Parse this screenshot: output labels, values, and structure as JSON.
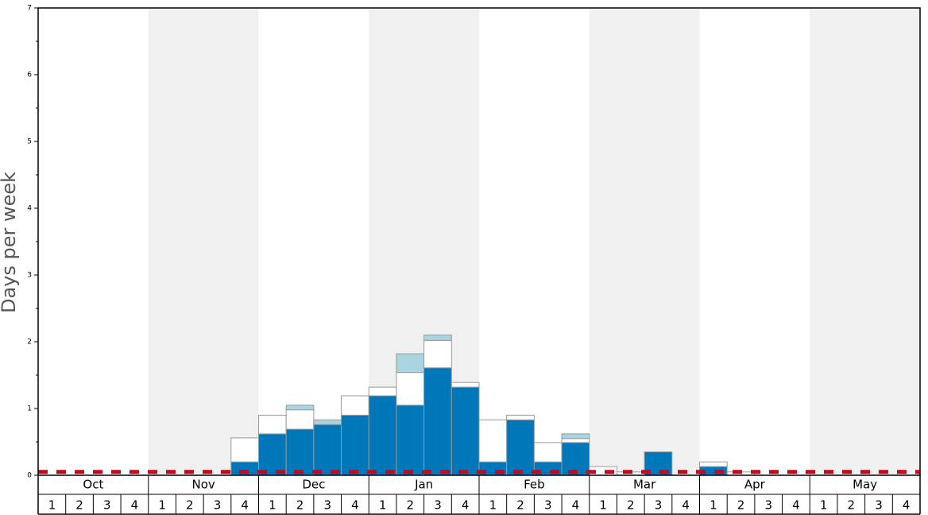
{
  "chart_data": {
    "type": "bar",
    "stacked": true,
    "y_label": "Days per week",
    "groups": [
      "Oct",
      "Nov",
      "Dec",
      "Jan",
      "Feb",
      "Mar",
      "Apr",
      "May"
    ],
    "categories": [
      "1",
      "2",
      "3",
      "4",
      "1",
      "2",
      "3",
      "4",
      "1",
      "2",
      "3",
      "4",
      "1",
      "2",
      "3",
      "4",
      "1",
      "2",
      "3",
      "4",
      "1",
      "2",
      "3",
      "4",
      "1",
      "2",
      "3",
      "4",
      "1",
      "2",
      "3",
      "4"
    ],
    "series": [
      {
        "color": "#0077b8",
        "values": [
          0,
          0,
          0,
          0,
          0,
          0,
          0,
          0.2,
          0.62,
          0.69,
          0.76,
          0.9,
          1.19,
          1.05,
          1.61,
          1.32,
          0.2,
          0.83,
          0.2,
          0.49,
          0,
          0,
          0.35,
          0,
          0.13,
          0,
          0,
          0,
          0,
          0,
          0,
          0
        ]
      },
      {
        "color": "#ffffff",
        "values": [
          0,
          0,
          0,
          0,
          0,
          0,
          0,
          0.36,
          0.28,
          0.29,
          0,
          0.29,
          0.13,
          0.49,
          0.41,
          0.07,
          0.63,
          0.07,
          0.29,
          0.06,
          0.13,
          0.05,
          0,
          0,
          0.07,
          0.05,
          0,
          0,
          0,
          0,
          0,
          0
        ]
      },
      {
        "color": "#a9d5e2",
        "values": [
          0,
          0,
          0,
          0,
          0,
          0,
          0,
          0,
          0,
          0.07,
          0.07,
          0,
          0,
          0.28,
          0.08,
          0,
          0,
          0,
          0,
          0.07,
          0,
          0,
          0,
          0,
          0,
          0,
          0,
          0,
          0,
          0,
          0,
          0
        ]
      }
    ],
    "reference_line": {
      "value": 0.05,
      "color": "#d0021b"
    },
    "ylim": [
      0,
      7
    ],
    "yticks": [
      0,
      1,
      2,
      3,
      4,
      5,
      6,
      7
    ],
    "yticks_minor": [
      0.5,
      1.5,
      2.5,
      3.5,
      4.5,
      5.5,
      6.5
    ],
    "shade_color": "#f0f0f0"
  }
}
